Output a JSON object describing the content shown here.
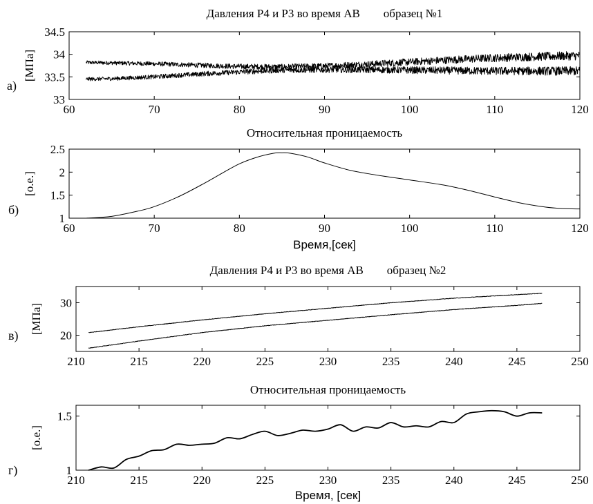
{
  "chart_data": [
    {
      "type": "line",
      "panel_letter": "а)",
      "title": "Давления Р4 и Р3 во время АВ        образец №1",
      "xlabel": "",
      "ylabel": "[МПа]",
      "xlim": [
        60,
        120
      ],
      "ylim": [
        33,
        34.5
      ],
      "xticks": [
        "60",
        "70",
        "80",
        "90",
        "100",
        "110",
        "120"
      ],
      "yticks": [
        "33",
        "33.5",
        "34",
        "34.5"
      ],
      "grid": false,
      "series": [
        {
          "x": [
            62,
            65,
            70,
            75,
            80,
            85,
            90,
            95,
            100,
            105,
            110,
            115,
            120
          ],
          "values": [
            33.82,
            33.81,
            33.79,
            33.76,
            33.73,
            33.72,
            33.74,
            33.78,
            33.83,
            33.88,
            33.92,
            33.95,
            33.97
          ],
          "noise": 0.1
        },
        {
          "x": [
            62,
            65,
            70,
            75,
            80,
            85,
            90,
            95,
            100,
            105,
            110,
            115,
            120
          ],
          "values": [
            33.45,
            33.46,
            33.5,
            33.56,
            33.61,
            33.65,
            33.66,
            33.66,
            33.65,
            33.64,
            33.63,
            33.63,
            33.63
          ],
          "noise": 0.1
        }
      ]
    },
    {
      "type": "line",
      "panel_letter": "б)",
      "title": "Относительная проницаемость",
      "xlabel": "Время,[сек]",
      "ylabel": "[о.е.]",
      "xlim": [
        60,
        120
      ],
      "ylim": [
        1,
        2.5
      ],
      "xticks": [
        "60",
        "70",
        "80",
        "90",
        "100",
        "110",
        "120"
      ],
      "yticks": [
        "1",
        "1.5",
        "2",
        "2.5"
      ],
      "grid": false,
      "series": [
        {
          "x": [
            62,
            65,
            68,
            70,
            73,
            76,
            78,
            80,
            82,
            84,
            85,
            86,
            88,
            90,
            93,
            96,
            100,
            104,
            107,
            110,
            113,
            116,
            118,
            120
          ],
          "values": [
            1.0,
            1.04,
            1.15,
            1.25,
            1.48,
            1.77,
            1.98,
            2.18,
            2.32,
            2.41,
            2.42,
            2.41,
            2.33,
            2.2,
            2.04,
            1.94,
            1.83,
            1.72,
            1.6,
            1.46,
            1.33,
            1.24,
            1.21,
            1.2
          ]
        }
      ]
    },
    {
      "type": "line",
      "panel_letter": "в)",
      "title": "Давления Р4 и Р3 во время АВ        образец №2",
      "xlabel": "",
      "ylabel": "[МПа]",
      "xlim": [
        210,
        250
      ],
      "ylim": [
        15,
        35
      ],
      "xticks": [
        "210",
        "215",
        "220",
        "225",
        "230",
        "235",
        "240",
        "245",
        "250"
      ],
      "yticks": [
        "20",
        "30"
      ],
      "grid": false,
      "series": [
        {
          "x": [
            211,
            215,
            220,
            225,
            230,
            235,
            240,
            245,
            247
          ],
          "values": [
            20.8,
            22.6,
            24.7,
            26.6,
            28.3,
            30.0,
            31.4,
            32.5,
            32.9
          ],
          "noise": 0.15
        },
        {
          "x": [
            211,
            215,
            220,
            225,
            230,
            235,
            240,
            245,
            247
          ],
          "values": [
            16.0,
            18.2,
            20.8,
            22.9,
            24.6,
            26.3,
            27.9,
            29.2,
            29.8
          ],
          "noise": 0.15
        }
      ]
    },
    {
      "type": "line",
      "panel_letter": "г)",
      "title": "Относительная проницаемость",
      "xlabel": "Время, [сек]",
      "ylabel": "[о.е.]",
      "xlim": [
        210,
        250
      ],
      "ylim": [
        1,
        1.6
      ],
      "xticks": [
        "210",
        "215",
        "220",
        "225",
        "230",
        "235",
        "240",
        "245",
        "250"
      ],
      "yticks": [
        "1",
        "1.5"
      ],
      "grid": false,
      "series": [
        {
          "x": [
            211,
            212,
            213,
            214,
            215,
            216,
            217,
            218,
            219,
            220,
            221,
            222,
            223,
            224,
            225,
            226,
            227,
            228,
            229,
            230,
            231,
            232,
            233,
            234,
            235,
            236,
            237,
            238,
            239,
            240,
            241,
            242,
            243,
            244,
            245,
            246,
            247
          ],
          "values": [
            1.0,
            1.03,
            1.02,
            1.1,
            1.13,
            1.18,
            1.19,
            1.24,
            1.23,
            1.24,
            1.25,
            1.3,
            1.29,
            1.33,
            1.36,
            1.32,
            1.34,
            1.37,
            1.36,
            1.38,
            1.42,
            1.36,
            1.4,
            1.39,
            1.44,
            1.4,
            1.41,
            1.4,
            1.45,
            1.44,
            1.52,
            1.54,
            1.55,
            1.54,
            1.5,
            1.53,
            1.53
          ]
        }
      ]
    }
  ]
}
